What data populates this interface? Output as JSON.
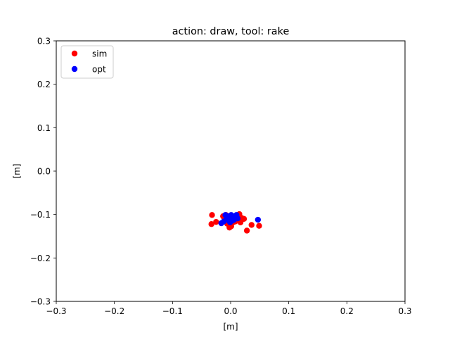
{
  "chart_data": {
    "type": "scatter",
    "title": "action: draw, tool: rake",
    "xlabel": "[m]",
    "ylabel": "[m]",
    "xlim": [
      -0.3,
      0.3
    ],
    "ylim": [
      -0.3,
      0.3
    ],
    "xticks": [
      -0.3,
      -0.2,
      -0.1,
      0.0,
      0.1,
      0.2,
      0.3
    ],
    "yticks": [
      -0.3,
      -0.2,
      -0.1,
      0.0,
      0.1,
      0.2,
      0.3
    ],
    "xtick_labels": [
      "−0.3",
      "−0.2",
      "−0.1",
      "0.0",
      "0.1",
      "0.2",
      "0.3"
    ],
    "ytick_labels": [
      "−0.3",
      "−0.2",
      "−0.1",
      "0.0",
      "0.1",
      "0.2",
      "0.3"
    ],
    "grid": false,
    "legend_position": "top-left",
    "series": [
      {
        "name": "sim",
        "color": "#ff0000",
        "x": [
          -0.032,
          -0.033,
          -0.025,
          -0.013,
          -0.008,
          -0.003,
          0.002,
          0.006,
          0.012,
          0.015,
          0.02,
          0.023,
          0.017,
          0.01,
          0.004,
          -0.002,
          0.001,
          0.028,
          0.036,
          0.049,
          0.0,
          -0.006,
          0.008,
          0.019
        ],
        "y": [
          -0.101,
          -0.122,
          -0.117,
          -0.104,
          -0.101,
          -0.111,
          -0.104,
          -0.109,
          -0.103,
          -0.099,
          -0.111,
          -0.11,
          -0.118,
          -0.114,
          -0.118,
          -0.13,
          -0.127,
          -0.137,
          -0.124,
          -0.126,
          -0.106,
          -0.121,
          -0.116,
          -0.108
        ]
      },
      {
        "name": "opt",
        "color": "#0000ff",
        "x": [
          -0.016,
          -0.012,
          -0.007,
          -0.003,
          0.001,
          0.004,
          0.008,
          0.012,
          0.003,
          -0.001,
          0.006,
          -0.004,
          0.01,
          0.047,
          -0.009
        ],
        "y": [
          -0.12,
          -0.116,
          -0.11,
          -0.104,
          -0.101,
          -0.104,
          -0.107,
          -0.109,
          -0.114,
          -0.118,
          -0.112,
          -0.113,
          -0.101,
          -0.112,
          -0.101
        ]
      }
    ]
  }
}
